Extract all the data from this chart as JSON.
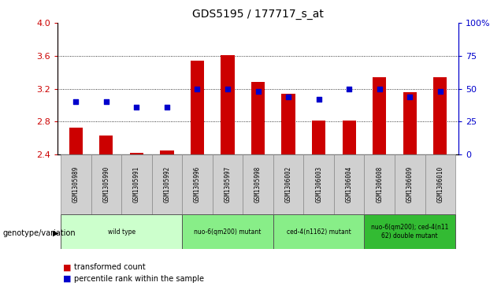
{
  "title": "GDS5195 / 177717_s_at",
  "samples": [
    "GSM1305989",
    "GSM1305990",
    "GSM1305991",
    "GSM1305992",
    "GSM1305996",
    "GSM1305997",
    "GSM1305998",
    "GSM1306002",
    "GSM1306003",
    "GSM1306004",
    "GSM1306008",
    "GSM1306009",
    "GSM1306010"
  ],
  "transformed_count": [
    2.73,
    2.63,
    2.42,
    2.45,
    3.54,
    3.61,
    3.28,
    3.14,
    2.81,
    2.81,
    3.34,
    3.16,
    3.34
  ],
  "percentile_rank": [
    40,
    40,
    36,
    36,
    50,
    50,
    48,
    44,
    42,
    50,
    50,
    44,
    48
  ],
  "ylim_left": [
    2.4,
    4.0
  ],
  "ylim_right": [
    0,
    100
  ],
  "yticks_left": [
    2.4,
    2.8,
    3.2,
    3.6,
    4.0
  ],
  "yticks_right": [
    0,
    25,
    50,
    75,
    100
  ],
  "grid_values": [
    2.8,
    3.2,
    3.6
  ],
  "bar_color": "#cc0000",
  "dot_color": "#0000cc",
  "bar_bottom": 2.4,
  "groups": [
    {
      "label": "wild type",
      "start": 0,
      "end": 4,
      "color": "#ccffcc"
    },
    {
      "label": "nuo-6(qm200) mutant",
      "start": 4,
      "end": 7,
      "color": "#88ee88"
    },
    {
      "label": "ced-4(n1162) mutant",
      "start": 7,
      "end": 10,
      "color": "#88ee88"
    },
    {
      "label": "nuo-6(qm200); ced-4(n11\n62) double mutant",
      "start": 10,
      "end": 13,
      "color": "#33bb33"
    }
  ],
  "legend_label_bar": "transformed count",
  "legend_label_dot": "percentile rank within the sample",
  "genotype_label": "genotype/variation",
  "left_tick_color": "#cc0000",
  "right_tick_color": "#0000cc",
  "plot_bg": "#ffffff",
  "sample_cell_color": "#d0d0d0",
  "bar_width": 0.45
}
